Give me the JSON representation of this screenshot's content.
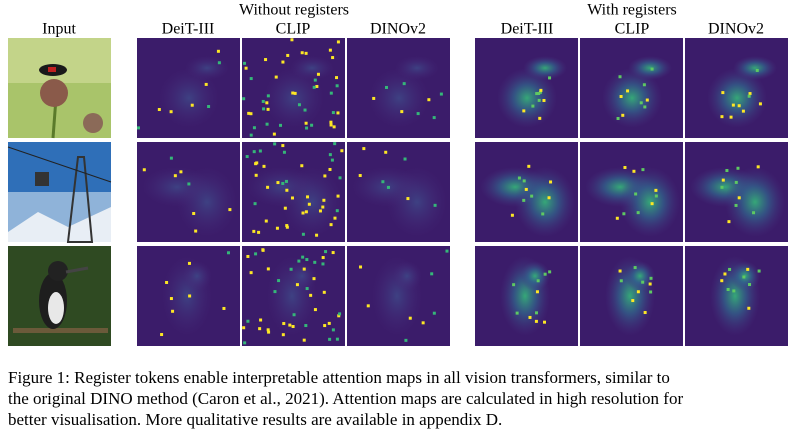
{
  "figure": {
    "group_headers": [
      "Without registers",
      "With registers"
    ],
    "column_labels": [
      "Input",
      "DeiT-III",
      "CLIP",
      "DINOv2",
      "DeiT-III",
      "CLIP",
      "DINOv2"
    ],
    "caption": {
      "lines": [
        "Figure 1: Register tokens enable  interpretable attention maps in all vision transformers, similar to",
        "the original DINO method (Caron et al., 2021). Attention maps are calculated in high resolution for",
        "better visualisation. More qualitative results are available in appendix D."
      ]
    }
  }
}
